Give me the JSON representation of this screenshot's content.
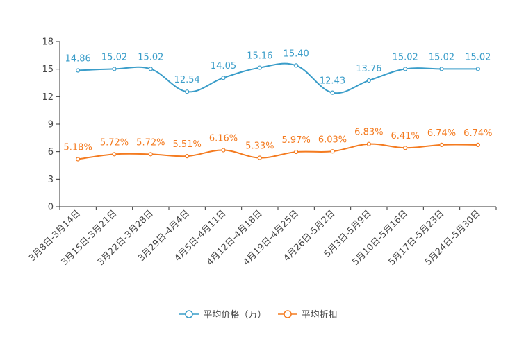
{
  "chart_data": {
    "type": "line",
    "categories": [
      "3月8日-3月14日",
      "3月15日-3月21日",
      "3月22日-3月28日",
      "3月29日-4月4日",
      "4月5日-4月11日",
      "4月12日-4月18日",
      "4月19日-4月25日",
      "4月26日-5月2日",
      "5月3日-5月9日",
      "5月10日-5月16日",
      "5月17日-5月23日",
      "5月24日-5月30日"
    ],
    "series": [
      {
        "name": "平均价格（万）",
        "color": "#3a9dc9",
        "values": [
          14.86,
          15.02,
          15.02,
          12.54,
          14.05,
          15.16,
          15.4,
          12.43,
          13.76,
          15.02,
          15.02,
          15.02
        ],
        "labels": [
          "14.86",
          "15.02",
          "15.02",
          "12.54",
          "14.05",
          "15.16",
          "15.40",
          "12.43",
          "13.76",
          "15.02",
          "15.02",
          "15.02"
        ]
      },
      {
        "name": "平均折扣",
        "color": "#f47b20",
        "values": [
          5.18,
          5.72,
          5.72,
          5.51,
          6.16,
          5.33,
          5.97,
          6.03,
          6.83,
          6.41,
          6.74,
          6.74
        ],
        "labels": [
          "5.18%",
          "5.72%",
          "5.72%",
          "5.51%",
          "6.16%",
          "5.33%",
          "5.97%",
          "6.03%",
          "6.83%",
          "6.41%",
          "6.74%",
          "6.74%"
        ]
      }
    ],
    "ylim": [
      0,
      18
    ],
    "yticks": [
      "0",
      "3",
      "6",
      "9",
      "12",
      "15",
      "18"
    ],
    "grid": false,
    "legend_position": "bottom"
  }
}
